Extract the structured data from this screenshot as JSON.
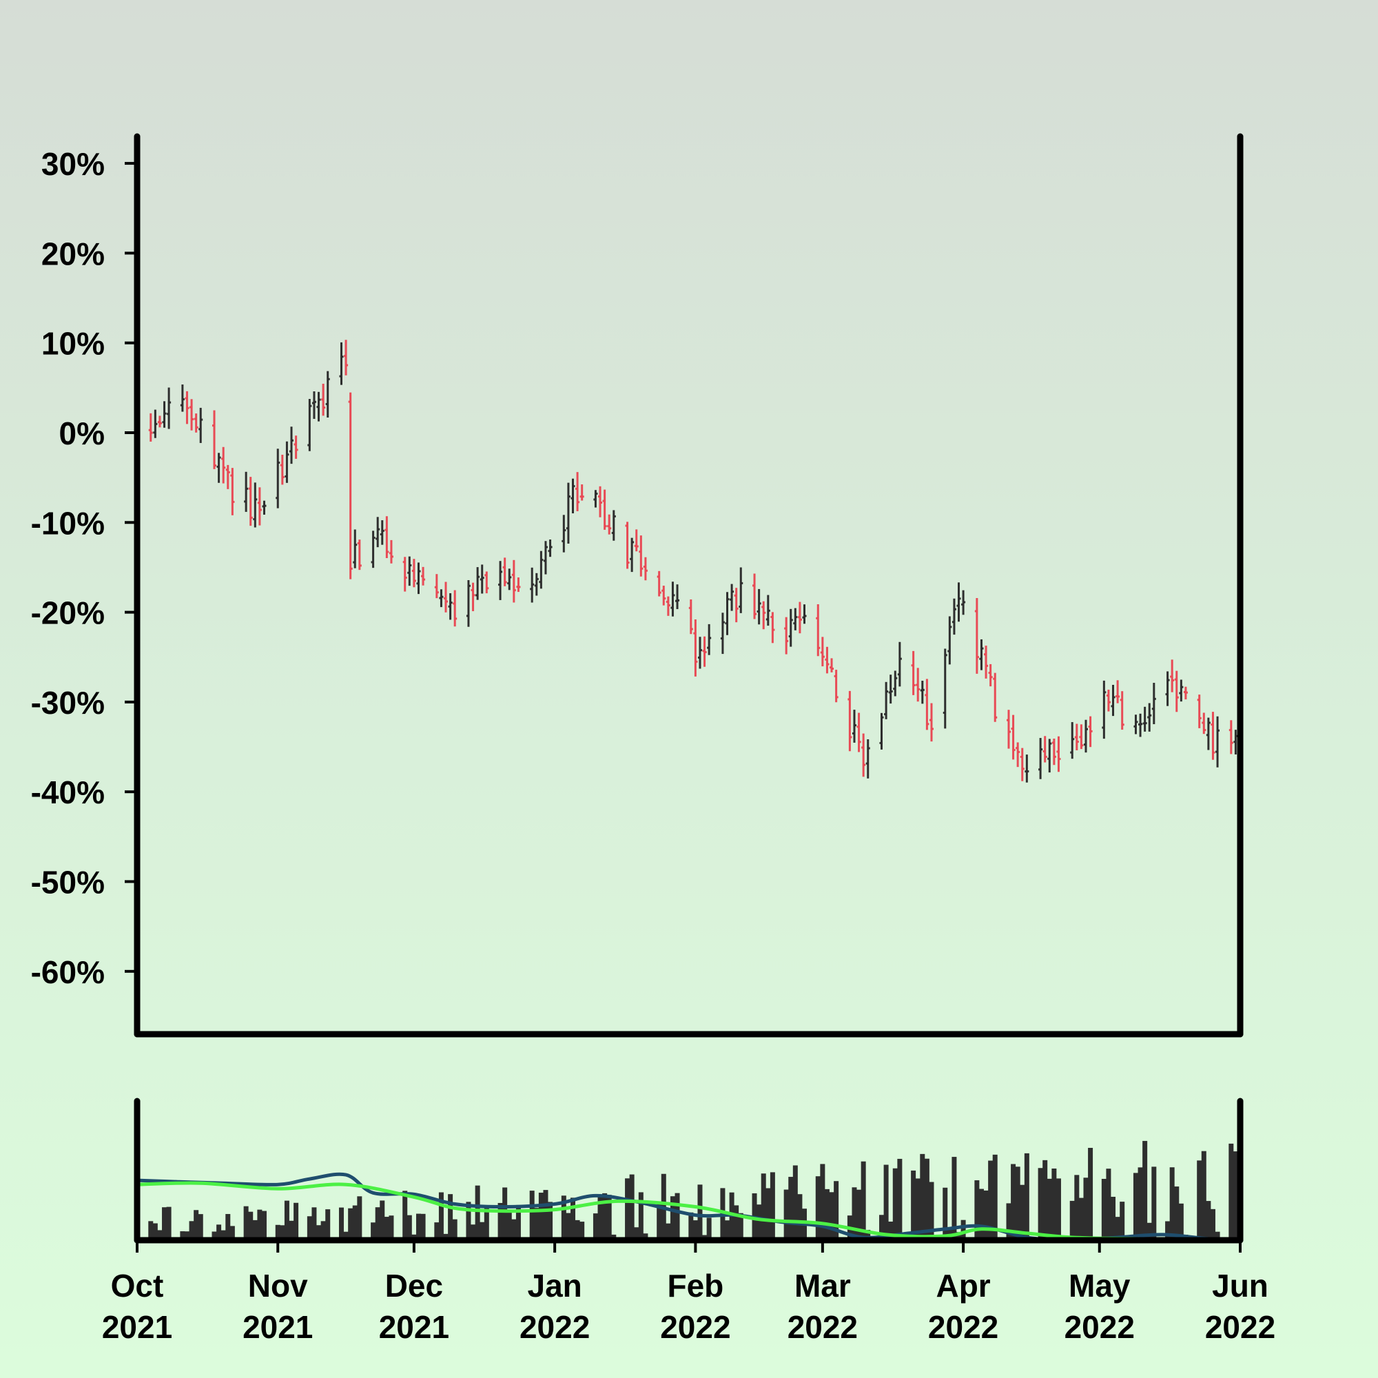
{
  "chart_data": {
    "type": "ohlc",
    "title": "",
    "xlabel": "",
    "ylabel": "",
    "y_format": "percent",
    "ylim": [
      -0.67,
      0.33
    ],
    "yticks": [
      0.3,
      0.2,
      0.1,
      0.0,
      -0.1,
      -0.2,
      -0.3,
      -0.4,
      -0.5,
      -0.6
    ],
    "ytick_labels": [
      "30%",
      "20%",
      "10%",
      "0%",
      "-10%",
      "-20%",
      "-30%",
      "-40%",
      "-50%",
      "-60%"
    ],
    "x_range": [
      "2021-10-01",
      "2022-06-01"
    ],
    "xticks": [
      {
        "date": "2021-10-01",
        "month": "Oct",
        "year": "2021"
      },
      {
        "date": "2021-11-01",
        "month": "Nov",
        "year": "2021"
      },
      {
        "date": "2021-12-01",
        "month": "Dec",
        "year": "2021"
      },
      {
        "date": "2022-01-01",
        "month": "Jan",
        "year": "2022"
      },
      {
        "date": "2022-02-01",
        "month": "Feb",
        "year": "2022"
      },
      {
        "date": "2022-03-01",
        "month": "Mar",
        "year": "2022"
      },
      {
        "date": "2022-04-01",
        "month": "Apr",
        "year": "2022"
      },
      {
        "date": "2022-05-01",
        "month": "May",
        "year": "2022"
      },
      {
        "date": "2022-06-01",
        "month": "Jun",
        "year": "2022"
      }
    ],
    "grid": false,
    "up_color": "#2e2e2e",
    "down_color": "#e84a55",
    "price_path": [
      [
        "2021-10-01",
        0.0
      ],
      [
        "2021-10-12",
        0.03
      ],
      [
        "2021-10-20",
        -0.05
      ],
      [
        "2021-10-27",
        -0.09
      ],
      [
        "2021-11-03",
        -0.03
      ],
      [
        "2021-11-10",
        0.03
      ],
      [
        "2021-11-16",
        0.08
      ],
      [
        "2021-11-17",
        -0.14
      ],
      [
        "2021-11-25",
        -0.12
      ],
      [
        "2021-12-03",
        -0.17
      ],
      [
        "2021-12-10",
        -0.2
      ],
      [
        "2021-12-20",
        -0.15
      ],
      [
        "2021-12-27",
        -0.18
      ],
      [
        "2022-01-05",
        -0.07
      ],
      [
        "2022-01-08",
        -0.05
      ],
      [
        "2022-01-15",
        -0.12
      ],
      [
        "2022-01-25",
        -0.17
      ],
      [
        "2022-02-02",
        -0.25
      ],
      [
        "2022-02-10",
        -0.18
      ],
      [
        "2022-02-20",
        -0.23
      ],
      [
        "2022-02-25",
        -0.19
      ],
      [
        "2022-03-05",
        -0.3
      ],
      [
        "2022-03-10",
        -0.37
      ],
      [
        "2022-03-18",
        -0.26
      ],
      [
        "2022-03-25",
        -0.32
      ],
      [
        "2022-03-31",
        -0.18
      ],
      [
        "2022-04-08",
        -0.3
      ],
      [
        "2022-04-15",
        -0.37
      ],
      [
        "2022-04-25",
        -0.35
      ],
      [
        "2022-05-01",
        -0.3
      ],
      [
        "2022-05-10",
        -0.32
      ],
      [
        "2022-05-17",
        -0.28
      ],
      [
        "2022-05-25",
        -0.34
      ],
      [
        "2022-06-01",
        -0.34
      ]
    ],
    "volume": {
      "ylim": [
        0,
        1.0
      ],
      "ma_fast": {
        "color": "#1f4e6e",
        "points": [
          [
            "2021-10-01",
            0.43
          ],
          [
            "2021-10-10",
            0.42
          ],
          [
            "2021-10-20",
            0.41
          ],
          [
            "2021-11-01",
            0.4
          ],
          [
            "2021-11-08",
            0.44
          ],
          [
            "2021-11-16",
            0.47
          ],
          [
            "2021-11-22",
            0.34
          ],
          [
            "2021-12-01",
            0.33
          ],
          [
            "2021-12-10",
            0.26
          ],
          [
            "2021-12-20",
            0.24
          ],
          [
            "2022-01-01",
            0.26
          ],
          [
            "2022-01-10",
            0.32
          ],
          [
            "2022-01-20",
            0.27
          ],
          [
            "2022-02-01",
            0.18
          ],
          [
            "2022-02-10",
            0.18
          ],
          [
            "2022-02-20",
            0.13
          ],
          [
            "2022-03-01",
            0.1
          ],
          [
            "2022-03-10",
            0.02
          ],
          [
            "2022-03-20",
            0.05
          ],
          [
            "2022-03-28",
            0.08
          ],
          [
            "2022-04-05",
            0.1
          ],
          [
            "2022-04-15",
            0.02
          ],
          [
            "2022-04-25",
            0.0
          ],
          [
            "2022-05-05",
            0.02
          ],
          [
            "2022-05-15",
            0.04
          ],
          [
            "2022-05-25",
            0.01
          ],
          [
            "2022-06-01",
            0.0
          ]
        ]
      },
      "ma_slow": {
        "color": "#4cf045",
        "points": [
          [
            "2021-10-01",
            0.4
          ],
          [
            "2021-10-15",
            0.41
          ],
          [
            "2021-11-01",
            0.37
          ],
          [
            "2021-11-16",
            0.4
          ],
          [
            "2021-12-01",
            0.31
          ],
          [
            "2021-12-10",
            0.23
          ],
          [
            "2021-12-20",
            0.21
          ],
          [
            "2022-01-01",
            0.22
          ],
          [
            "2022-01-15",
            0.28
          ],
          [
            "2022-02-01",
            0.24
          ],
          [
            "2022-02-15",
            0.15
          ],
          [
            "2022-03-01",
            0.12
          ],
          [
            "2022-03-15",
            0.04
          ],
          [
            "2022-03-28",
            0.03
          ],
          [
            "2022-04-05",
            0.08
          ],
          [
            "2022-04-15",
            0.05
          ],
          [
            "2022-04-25",
            0.02
          ],
          [
            "2022-05-10",
            0.01
          ],
          [
            "2022-06-01",
            0.0
          ]
        ]
      }
    }
  }
}
